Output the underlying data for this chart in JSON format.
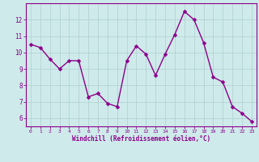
{
  "x": [
    0,
    1,
    2,
    3,
    4,
    5,
    6,
    7,
    8,
    9,
    10,
    11,
    12,
    13,
    14,
    15,
    16,
    17,
    18,
    19,
    20,
    21,
    22,
    23
  ],
  "y": [
    10.5,
    10.3,
    9.6,
    9.0,
    9.5,
    9.5,
    7.3,
    7.5,
    6.9,
    6.7,
    9.5,
    10.4,
    9.9,
    8.6,
    9.9,
    11.1,
    12.5,
    12.0,
    10.6,
    8.5,
    8.2,
    6.7,
    6.3,
    5.8
  ],
  "line_color": "#8B008B",
  "marker": "D",
  "marker_size": 2.5,
  "linewidth": 1.0,
  "bg_color": "#ceeaea",
  "grid_color": "#b0d0d0",
  "xlabel": "Windchill (Refroidissement éolien,°C)",
  "xlabel_color": "#8B008B",
  "tick_color": "#8B008B",
  "axis_color": "#8B008B",
  "ylim": [
    5.5,
    13.0
  ],
  "yticks": [
    6,
    7,
    8,
    9,
    10,
    11,
    12
  ],
  "xlim": [
    -0.5,
    23.5
  ],
  "xticks": [
    0,
    1,
    2,
    3,
    4,
    5,
    6,
    7,
    8,
    9,
    10,
    11,
    12,
    13,
    14,
    15,
    16,
    17,
    18,
    19,
    20,
    21,
    22,
    23
  ]
}
